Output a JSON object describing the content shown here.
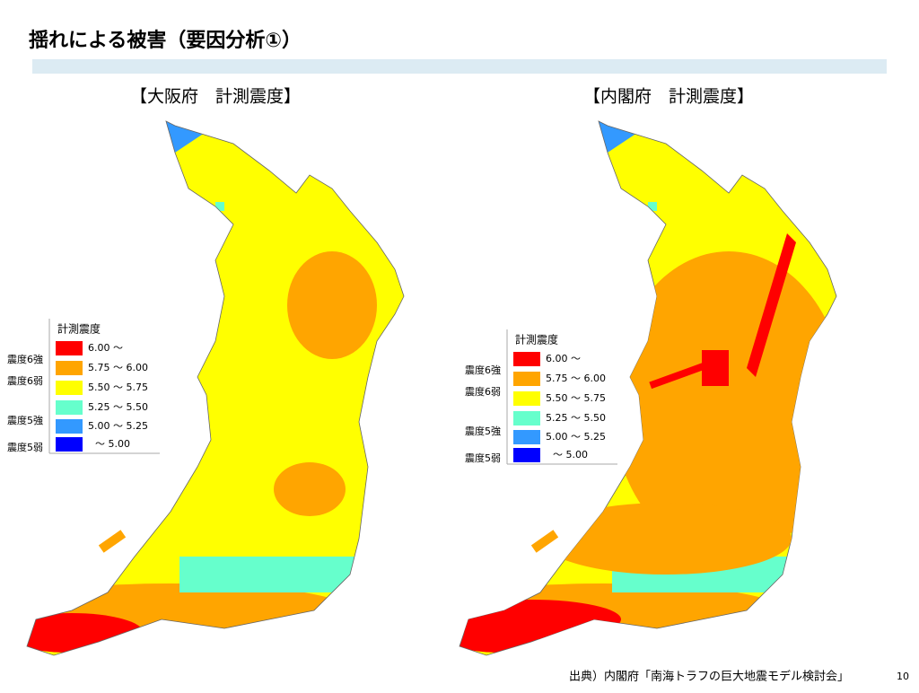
{
  "title": "揺れによる被害（要因分析①）",
  "maps": [
    {
      "heading": "【大阪府　計測震度】"
    },
    {
      "heading": "【内閣府　計測震度】"
    }
  ],
  "legend": {
    "header": "計測震度",
    "items": [
      {
        "color": "#ff0000",
        "range": "6.00 ～"
      },
      {
        "color": "#ffa500",
        "range": "5.75 ～ 6.00"
      },
      {
        "color": "#ffff00",
        "range": "5.50 ～ 5.75"
      },
      {
        "color": "#66ffcc",
        "range": "5.25 ～ 5.50"
      },
      {
        "color": "#3399ff",
        "range": "5.00 ～ 5.25"
      },
      {
        "color": "#0000ff",
        "range": "～ 5.00"
      }
    ],
    "intensity_labels": [
      "震度6強",
      "震度6弱",
      "震度5強",
      "震度5弱"
    ]
  },
  "source": "出典）内閣府「南海トラフの巨大地震モデル検討会」",
  "page": "10"
}
